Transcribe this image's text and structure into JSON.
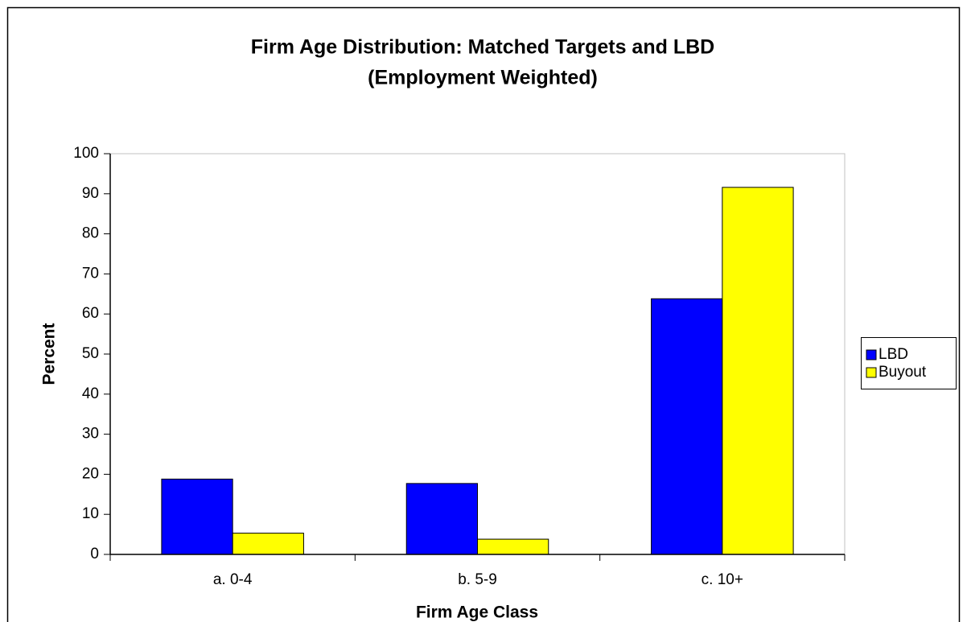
{
  "chart_data": {
    "type": "bar",
    "title": [
      "Firm Age Distribution: Matched Targets and LBD",
      "(Employment Weighted)"
    ],
    "x_label": "Firm Age Class",
    "y_label": "Percent",
    "categories": [
      "a. 0-4",
      "b. 5-9",
      "c. 10+"
    ],
    "series": [
      {
        "name": "LBD",
        "color": "#0000ff",
        "values": [
          18.8,
          17.7,
          63.8
        ]
      },
      {
        "name": "Buyout",
        "color": "#ffff00",
        "values": [
          5.3,
          3.8,
          91.6
        ]
      }
    ],
    "ylim": [
      0,
      100
    ],
    "yticks": [
      0,
      10,
      20,
      30,
      40,
      50,
      60,
      70,
      80,
      90,
      100
    ],
    "legend": "right"
  }
}
